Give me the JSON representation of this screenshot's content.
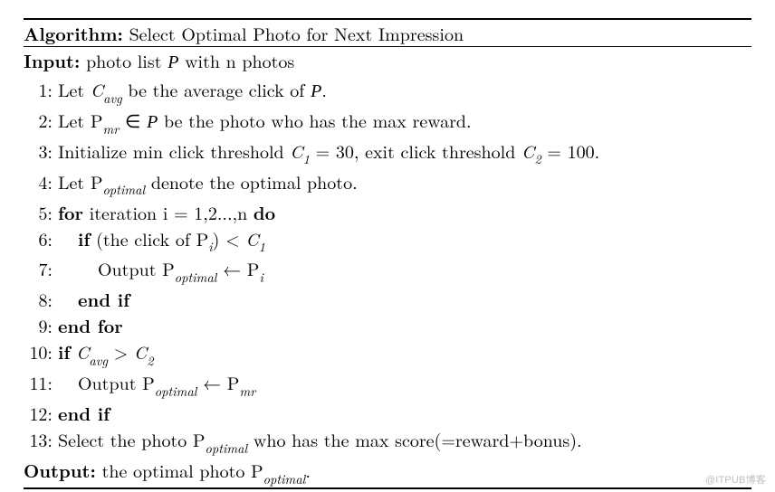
{
  "colors": {
    "background": "#ffffff",
    "text": "#000000",
    "rule": "#000000",
    "watermark": "#bfbfbf"
  },
  "typography": {
    "body_font": "Latin Modern Roman / Computer Modern serif",
    "body_size_pt": 15,
    "sub_scale": 0.72,
    "line_height": 1.45
  },
  "algorithm": {
    "title_label": "Algorithm:",
    "title_text": "Select Optimal Photo for Next Impression",
    "input_label": "Input:",
    "input_text_1": "photo list ",
    "input_set": "P",
    "input_text_2": " with n photos",
    "output_label": "Output:",
    "output_text_1": "the optimal photo P",
    "output_sub": "optimal",
    "output_text_2": ".",
    "thresholds": {
      "C1": 30,
      "C2": 100
    },
    "steps": [
      {
        "no": "1:",
        "parts": [
          "Let ",
          {
            "m": "C"
          },
          {
            "s": "avg"
          },
          " be the average click of ",
          {
            "cal": "P"
          },
          "."
        ]
      },
      {
        "no": "2:",
        "parts": [
          "Let P",
          {
            "s": "mr"
          },
          " ∈ ",
          {
            "cal": "P"
          },
          " be the photo who has the max reward."
        ]
      },
      {
        "no": "3:",
        "parts": [
          "Initialize min click threshold ",
          {
            "m": "C"
          },
          {
            "s": "1"
          },
          " = 30, exit click threshold ",
          {
            "m": "C"
          },
          {
            "s": "2"
          },
          " = 100."
        ]
      },
      {
        "no": "4:",
        "parts": [
          "Let P",
          {
            "s": "optimal"
          },
          " denote the optimal photo."
        ]
      },
      {
        "no": "5:",
        "parts": [
          {
            "b": "for"
          },
          " iteration i = 1,2...,n ",
          {
            "b": "do"
          }
        ]
      },
      {
        "no": "6:",
        "indent": 1,
        "parts": [
          {
            "b": "if"
          },
          " (the click of P",
          {
            "s": "i"
          },
          ") < ",
          {
            "m": "C"
          },
          {
            "s": "1"
          }
        ]
      },
      {
        "no": "7:",
        "indent": 2,
        "parts": [
          "Output P",
          {
            "s": "optimal"
          },
          " ← P",
          {
            "s": "i"
          }
        ]
      },
      {
        "no": "8:",
        "indent": 1,
        "parts": [
          {
            "b": "end if"
          }
        ]
      },
      {
        "no": "9:",
        "parts": [
          {
            "b": "end for"
          }
        ]
      },
      {
        "no": "10:",
        "parts": [
          {
            "b": "if"
          },
          " ",
          {
            "m": "C"
          },
          {
            "s": "avg"
          },
          " > ",
          {
            "m": "C"
          },
          {
            "s": "2"
          }
        ]
      },
      {
        "no": "11:",
        "indent": 1,
        "parts": [
          "Output P",
          {
            "s": "optimal"
          },
          " ← P",
          {
            "s": "mr"
          }
        ]
      },
      {
        "no": "12:",
        "parts": [
          {
            "b": "end if"
          }
        ]
      },
      {
        "no": "13:",
        "parts": [
          "Select the photo P",
          {
            "s": "optimal"
          },
          " who has the max score(=reward+bonus)."
        ]
      }
    ]
  },
  "watermark": "@ITPUB博客"
}
